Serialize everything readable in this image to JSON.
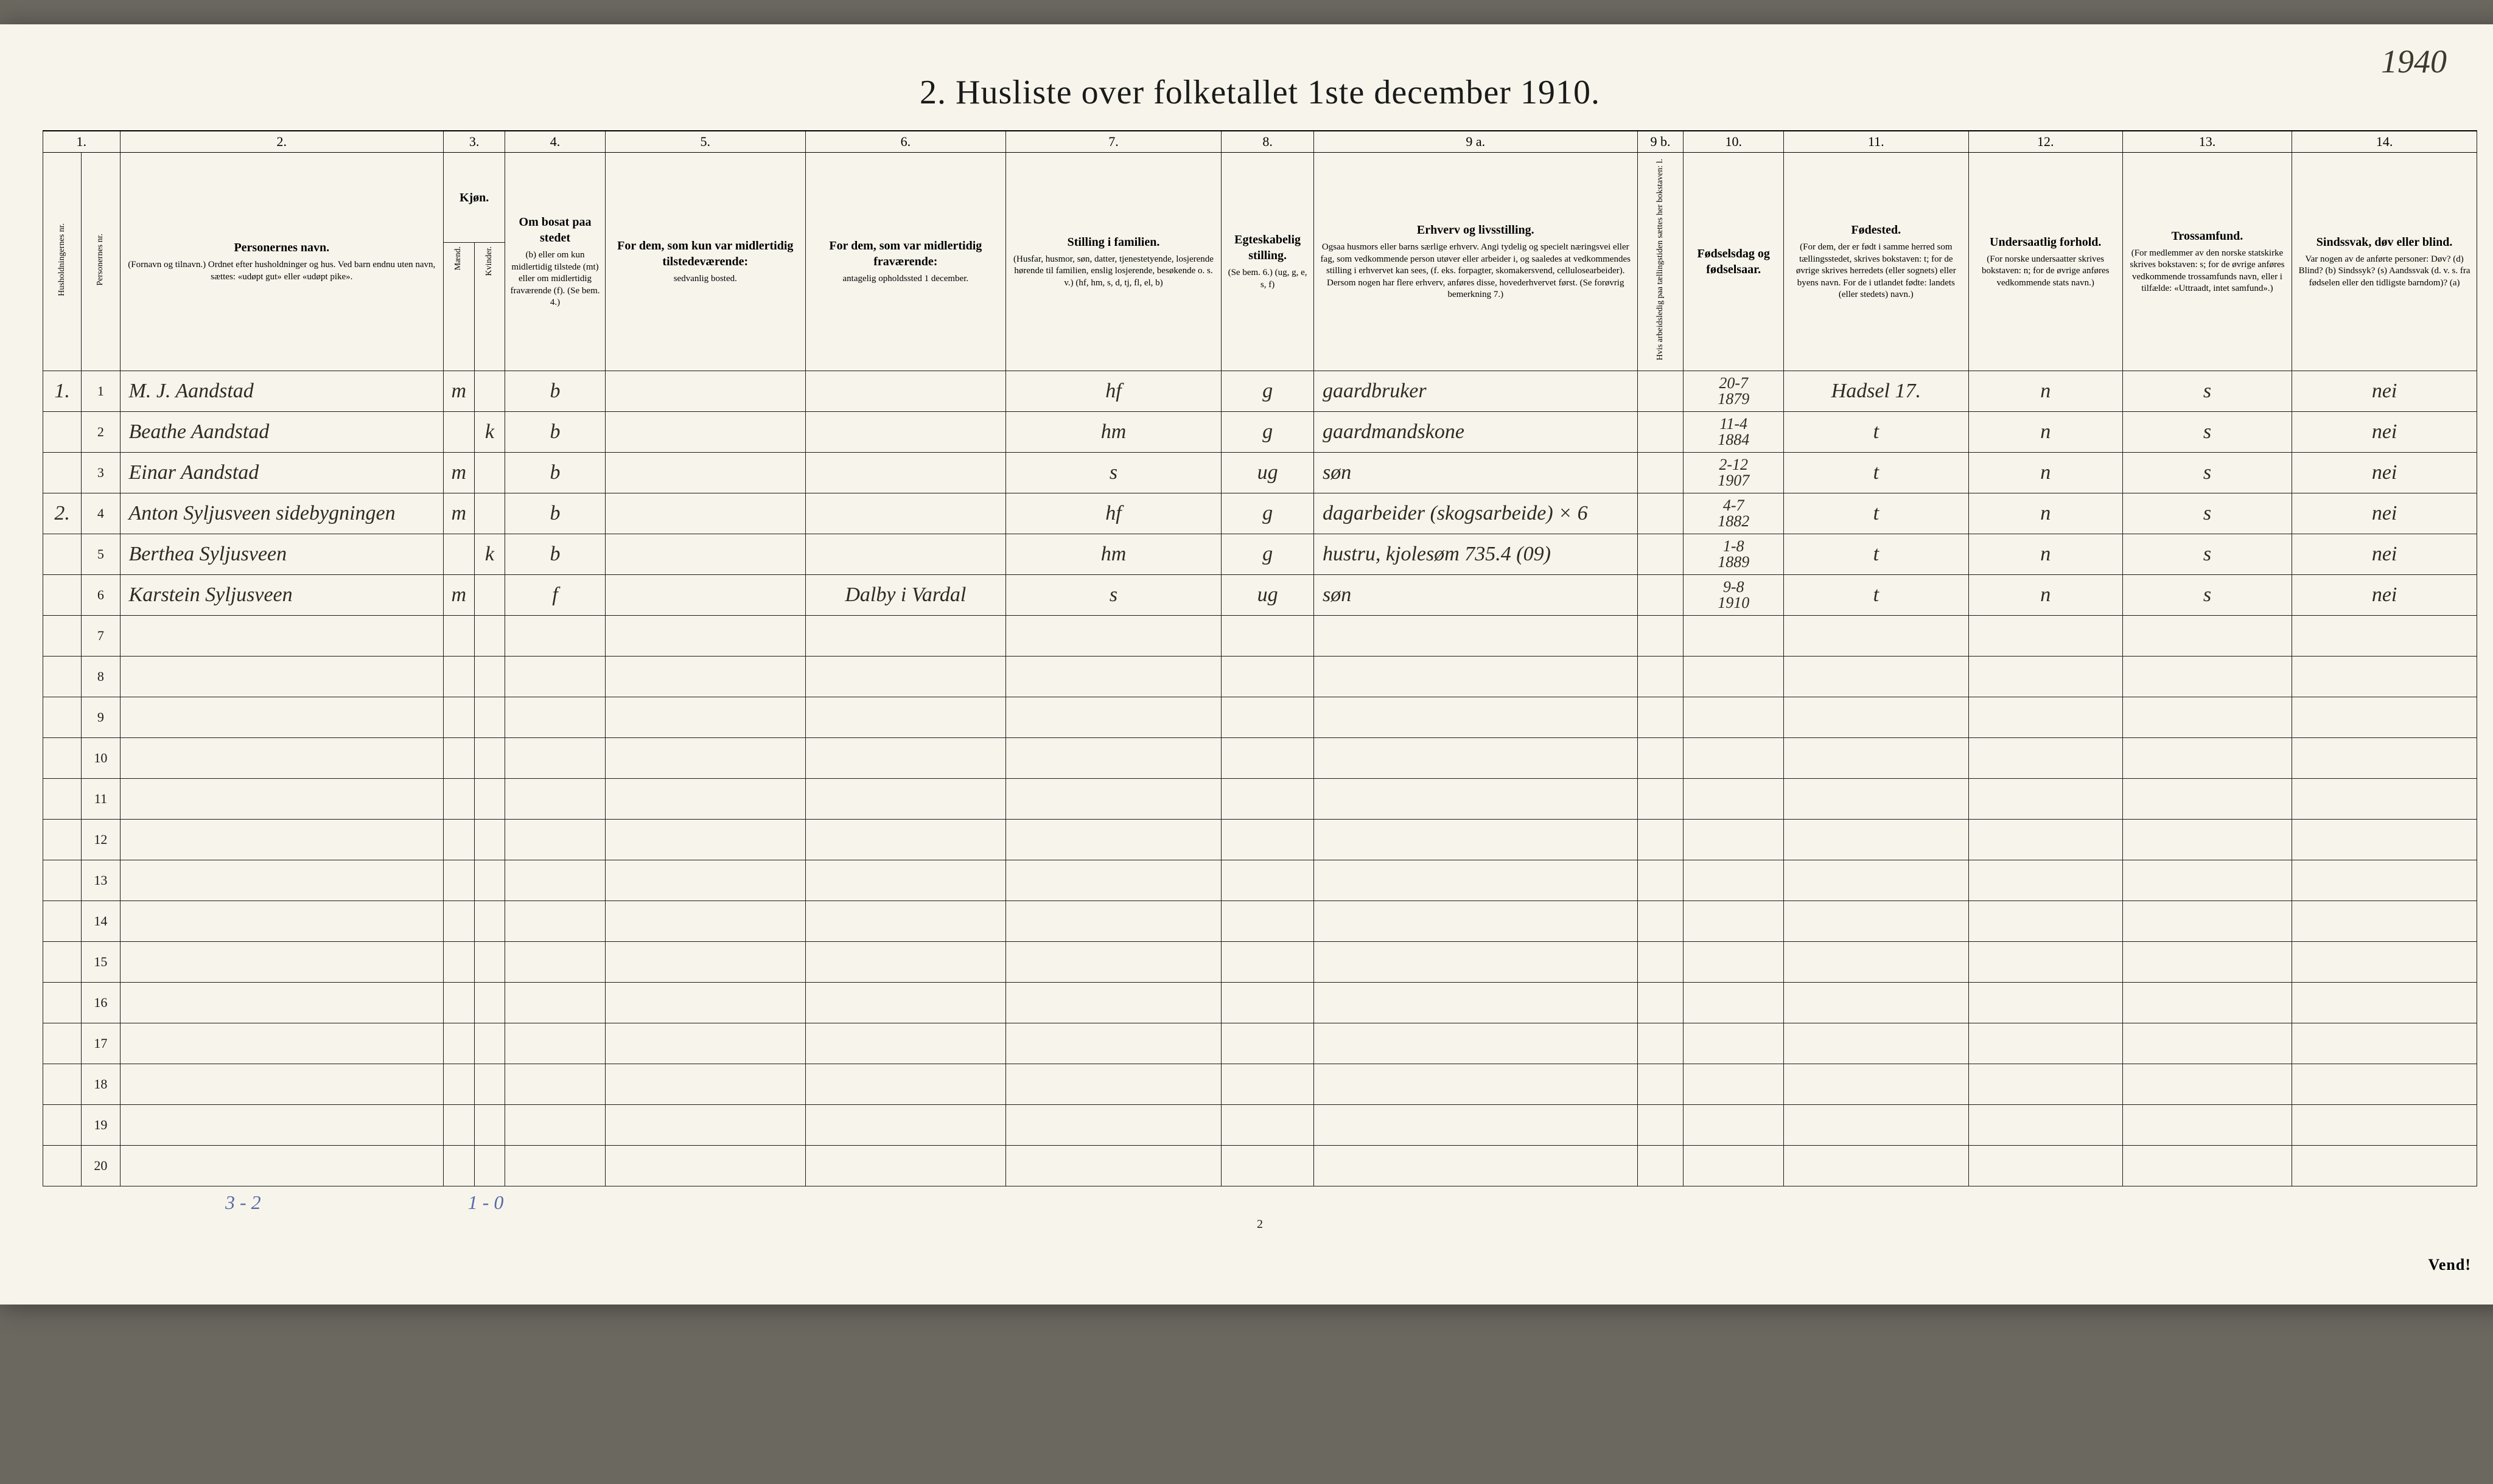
{
  "corner_note": "1940",
  "title": "2.  Husliste over folketallet 1ste december 1910.",
  "colnums": [
    "1.",
    "",
    "2.",
    "3.",
    "",
    "4.",
    "5.",
    "6.",
    "7.",
    "8.",
    "9 a.",
    "9 b.",
    "10.",
    "11.",
    "12.",
    "13.",
    "14."
  ],
  "headers": {
    "c1": "Husholdningernes nr.",
    "c1b": "Personernes nr.",
    "c2_title": "Personernes navn.",
    "c2_sub": "(Fornavn og tilnavn.)\nOrdnet efter husholdninger og hus.\nVed barn endnu uten navn, sættes: «udøpt gut» eller «udøpt pike».",
    "c3_title": "Kjøn.",
    "c3_m": "Mænd.",
    "c3_k": "Kvinder.",
    "c4_title": "Om bosat paa stedet",
    "c4_sub": "(b) eller om kun midlertidig tilstede (mt) eller om midlertidig fraværende (f). (Se bem. 4.)",
    "c5_title": "For dem, som kun var midlertidig tilstedeværende:",
    "c5_sub": "sedvanlig bosted.",
    "c6_title": "For dem, som var midlertidig fraværende:",
    "c6_sub": "antagelig opholdssted 1 december.",
    "c7_title": "Stilling i familien.",
    "c7_sub": "(Husfar, husmor, søn, datter, tjenestetyende, losjerende hørende til familien, enslig losjerende, besøkende o. s. v.)\n(hf, hm, s, d, tj, fl, el, b)",
    "c8_title": "Egteskabelig stilling.",
    "c8_sub": "(Se bem. 6.)\n(ug, g, e, s, f)",
    "c9a_title": "Erhverv og livsstilling.",
    "c9a_sub": "Ogsaa husmors eller barns særlige erhverv. Angi tydelig og specielt næringsvei eller fag, som vedkommende person utøver eller arbeider i, og saaledes at vedkommendes stilling i erhvervet kan sees, (f. eks. forpagter, skomakersvend, cellulosearbeider). Dersom nogen har flere erhverv, anføres disse, hovederhvervet først. (Se forøvrig bemerkning 7.)",
    "c9b": "Hvis arbeidsledig paa tællingstiden sættes her bokstaven: l.",
    "c10_title": "Fødselsdag og fødselsaar.",
    "c11_title": "Fødested.",
    "c11_sub": "(For dem, der er født i samme herred som tællingsstedet, skrives bokstaven: t; for de øvrige skrives herredets (eller sognets) eller byens navn. For de i utlandet fødte: landets (eller stedets) navn.)",
    "c12_title": "Undersaatlig forhold.",
    "c12_sub": "(For norske undersaatter skrives bokstaven: n; for de øvrige anføres vedkommende stats navn.)",
    "c13_title": "Trossamfund.",
    "c13_sub": "(For medlemmer av den norske statskirke skrives bokstaven: s; for de øvrige anføres vedkommende trossamfunds navn, eller i tilfælde: «Uttraadt, intet samfund».)",
    "c14_title": "Sindssvak, døv eller blind.",
    "c14_sub": "Var nogen av de anførte personer:\nDøv? (d)\nBlind? (b)\nSindssyk? (s)\nAandssvak (d. v. s. fra fødselen eller den tidligste barndom)? (a)"
  },
  "rows": [
    {
      "hh": "1.",
      "pn": "1",
      "name": "M. J. Aandstad",
      "m": "m",
      "k": "",
      "bosat": "b",
      "c5": "",
      "c6": "",
      "fam": "hf",
      "egt": "g",
      "erhv": "gaardbruker",
      "c9b": "",
      "dob": "20-7\n1879",
      "fsted": "Hadsel  17.",
      "und": "n",
      "tros": "s",
      "sind": "nei"
    },
    {
      "hh": "",
      "pn": "2",
      "name": "Beathe Aandstad",
      "m": "",
      "k": "k",
      "bosat": "b",
      "c5": "",
      "c6": "",
      "fam": "hm",
      "egt": "g",
      "erhv": "gaardmandskone",
      "c9b": "",
      "dob": "11-4\n1884",
      "fsted": "t",
      "und": "n",
      "tros": "s",
      "sind": "nei"
    },
    {
      "hh": "",
      "pn": "3",
      "name": "Einar Aandstad",
      "m": "m",
      "k": "",
      "bosat": "b",
      "c5": "",
      "c6": "",
      "fam": "s",
      "egt": "ug",
      "erhv": "søn",
      "c9b": "",
      "dob": "2-12\n1907",
      "fsted": "t",
      "und": "n",
      "tros": "s",
      "sind": "nei"
    },
    {
      "hh": "2.",
      "pn": "4",
      "name": "Anton Syljusveen  sidebygningen",
      "m": "m",
      "k": "",
      "bosat": "b",
      "c5": "",
      "c6": "",
      "fam": "hf",
      "egt": "g",
      "erhv": "dagarbeider (skogsarbeide) × 6",
      "c9b": "",
      "dob": "4-7\n1882",
      "fsted": "t",
      "und": "n",
      "tros": "s",
      "sind": "nei"
    },
    {
      "hh": "",
      "pn": "5",
      "name": "Berthea Syljusveen",
      "m": "",
      "k": "k",
      "bosat": "b",
      "c5": "",
      "c6": "",
      "fam": "hm",
      "egt": "g",
      "erhv": "hustru, kjolesøm  735.4 (09)",
      "c9b": "",
      "dob": "1-8\n1889",
      "fsted": "t",
      "und": "n",
      "tros": "s",
      "sind": "nei"
    },
    {
      "hh": "",
      "pn": "6",
      "name": "Karstein Syljusveen",
      "m": "m",
      "k": "",
      "bosat": "f",
      "c5": "",
      "c6": "Dalby i Vardal",
      "fam": "s",
      "egt": "ug",
      "erhv": "søn",
      "c9b": "",
      "dob": "9-8\n1910",
      "fsted": "t",
      "und": "n",
      "tros": "s",
      "sind": "nei"
    }
  ],
  "empty_rows_start": 7,
  "empty_rows_end": 20,
  "footer_left": "3 - 2",
  "footer_mid": "1 - 0",
  "page_small": "2",
  "vend": "Vend!",
  "style": {
    "page_bg": "#f7f5eb",
    "outer_bg": "#6b6860",
    "ink": "#1a1a1a",
    "script_ink": "#2e2b22",
    "blue_ink": "#5a6aa8",
    "title_fontsize": 56,
    "body_row_height": 58,
    "script_fontsize": 34,
    "header_fontsize": 18
  }
}
